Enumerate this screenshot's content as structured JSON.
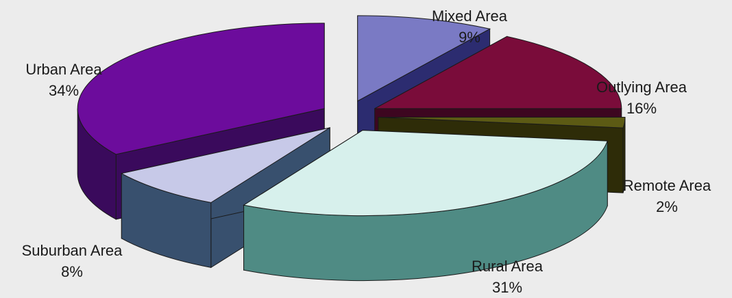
{
  "chart_data": {
    "type": "pie",
    "style": "3d-exploded",
    "title": "",
    "slices": [
      {
        "label": "Mixed Area",
        "value": 9,
        "value_label": "9%",
        "color": "#7a7ac4",
        "side_color": "#2c2c70"
      },
      {
        "label": "Outlying Area",
        "value": 16,
        "value_label": "16%",
        "color": "#7a0c3a",
        "side_color": "#3d0620"
      },
      {
        "label": "Remote Area",
        "value": 2,
        "value_label": "2%",
        "color": "#5c5a14",
        "side_color": "#2e2c08"
      },
      {
        "label": "Rural Area",
        "value": 31,
        "value_label": "31%",
        "color": "#d7f0ec",
        "side_color": "#4f8b84"
      },
      {
        "label": "Suburban Area",
        "value": 8,
        "value_label": "8%",
        "color": "#c7c9e8",
        "side_color": "#38506e"
      },
      {
        "label": "Urban Area",
        "value": 34,
        "value_label": "34%",
        "color": "#6c0c9c",
        "side_color": "#3a0a5c"
      }
    ],
    "legend": "none"
  }
}
